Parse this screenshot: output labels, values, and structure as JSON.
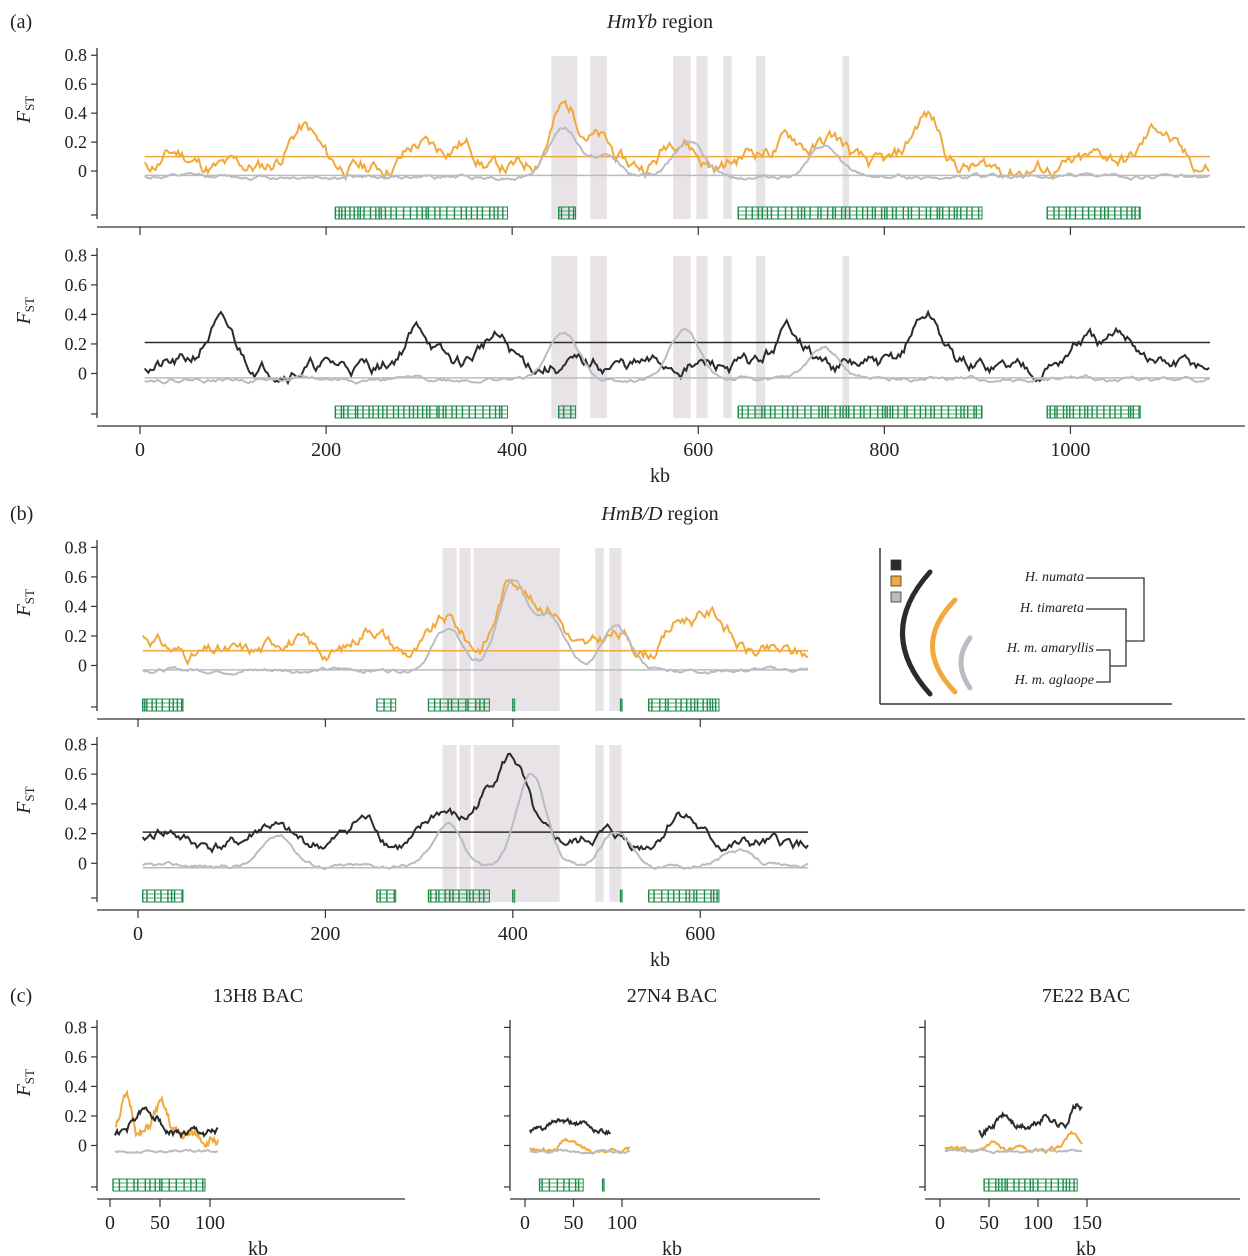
{
  "panels": {
    "a": {
      "letter": "(a)",
      "title_italic": "HmYb",
      "title_rest": " region"
    },
    "b": {
      "letter": "(b)",
      "title_italic": "HmB/D",
      "title_rest": " region"
    },
    "c": {
      "letter": "(c)"
    }
  },
  "ylabel_main": "F",
  "ylabel_sub": "ST",
  "xlabel": "kb",
  "colors": {
    "black": "#2b2b2b",
    "orange": "#f2a93b",
    "grey": "#b9bcc2",
    "gene": "#1d8a48",
    "shade": "#e8e3e6",
    "axis": "#333333"
  },
  "legend": {
    "taxa": [
      "H. numata",
      "H. timareta",
      "H. m. amaryllis",
      "H. m. aglaope"
    ],
    "swatch_colors": [
      "#2b2b2b",
      "#f2a93b",
      "#b9bcc2"
    ]
  },
  "chart_data": [
    {
      "id": "a_top",
      "type": "line",
      "xlim": [
        0,
        1160
      ],
      "ylim": [
        -0.2,
        0.85
      ],
      "yticks": [
        0,
        0.2,
        0.4,
        0.6,
        0.8
      ],
      "ytick_labels": [
        "0",
        "0.2",
        "0.4",
        "0.6",
        "0.8"
      ],
      "xticks": [
        0,
        200,
        400,
        600,
        800,
        1000
      ],
      "xtick_labels": [],
      "shaded_kb": [
        [
          442,
          470
        ],
        [
          484,
          502
        ],
        [
          573,
          592
        ],
        [
          598,
          610
        ],
        [
          627,
          636
        ],
        [
          662,
          672
        ],
        [
          755,
          762
        ]
      ],
      "genes_kb": [
        [
          210,
          395
        ],
        [
          450,
          468
        ],
        [
          643,
          905
        ],
        [
          975,
          1075
        ]
      ],
      "series": [
        {
          "name": "",
          "color": "orange",
          "x_range": [
            5,
            1150
          ],
          "baseline": 0.02,
          "peaks": [
            [
              40,
              0.12
            ],
            [
              175,
              0.3
            ],
            [
              300,
              0.18
            ],
            [
              345,
              0.2
            ],
            [
              455,
              0.42
            ],
            [
              490,
              0.22
            ],
            [
              580,
              0.26
            ],
            [
              660,
              0.14
            ],
            [
              700,
              0.22
            ],
            [
              745,
              0.22
            ],
            [
              845,
              0.38
            ],
            [
              1040,
              0.1
            ],
            [
              1095,
              0.3
            ]
          ],
          "noise": 0.08,
          "hline": 0.1,
          "seed": 11
        },
        {
          "name": "",
          "color": "grey",
          "x_range": [
            5,
            1150
          ],
          "baseline": -0.04,
          "peaks": [
            [
              455,
              0.3
            ],
            [
              500,
              0.1
            ],
            [
              590,
              0.22
            ],
            [
              735,
              0.16
            ]
          ],
          "noise": 0.02,
          "hline": -0.03,
          "seed": 12
        }
      ]
    },
    {
      "id": "a_bottom",
      "type": "line",
      "xlim": [
        0,
        1160
      ],
      "ylim": [
        -0.2,
        0.85
      ],
      "yticks": [
        0,
        0.2,
        0.4,
        0.6,
        0.8
      ],
      "ytick_labels": [
        "0",
        "0.2",
        "0.4",
        "0.6",
        "0.8"
      ],
      "xticks": [
        0,
        200,
        400,
        600,
        800,
        1000
      ],
      "xtick_labels": [
        "0",
        "200",
        "400",
        "600",
        "800",
        "1000"
      ],
      "shaded_kb": [
        [
          442,
          470
        ],
        [
          484,
          502
        ],
        [
          573,
          592
        ],
        [
          598,
          610
        ],
        [
          627,
          636
        ],
        [
          662,
          672
        ],
        [
          755,
          762
        ]
      ],
      "genes_kb": [
        [
          210,
          395
        ],
        [
          450,
          468
        ],
        [
          643,
          905
        ],
        [
          975,
          1075
        ]
      ],
      "series": [
        {
          "name": "",
          "color": "black",
          "x_range": [
            5,
            1150
          ],
          "baseline": 0.05,
          "peaks": [
            [
              85,
              0.32
            ],
            [
              300,
              0.3
            ],
            [
              380,
              0.24
            ],
            [
              700,
              0.3
            ],
            [
              845,
              0.4
            ],
            [
              1015,
              0.22
            ],
            [
              1060,
              0.24
            ]
          ],
          "noise": 0.07,
          "hline": 0.21,
          "seed": 21
        },
        {
          "name": "",
          "color": "grey",
          "x_range": [
            5,
            1150
          ],
          "baseline": -0.04,
          "peaks": [
            [
              455,
              0.28
            ],
            [
              585,
              0.3
            ],
            [
              735,
              0.18
            ]
          ],
          "noise": 0.02,
          "hline": -0.03,
          "seed": 22
        }
      ]
    },
    {
      "id": "b_top",
      "type": "line",
      "xlim": [
        0,
        1185
      ],
      "ylim": [
        -0.2,
        0.85
      ],
      "yticks": [
        0,
        0.2,
        0.4,
        0.6,
        0.8
      ],
      "ytick_labels": [
        "0",
        "0.2",
        "0.4",
        "0.6",
        "0.8"
      ],
      "xticks": [
        0,
        200,
        400,
        600
      ],
      "xtick_labels": [],
      "shaded_kb": [
        [
          325,
          340
        ],
        [
          343,
          355
        ],
        [
          358,
          450
        ],
        [
          488,
          497
        ],
        [
          503,
          516
        ]
      ],
      "genes_kb": [
        [
          5,
          48
        ],
        [
          255,
          275
        ],
        [
          310,
          375
        ],
        [
          400,
          402
        ],
        [
          515,
          516
        ],
        [
          545,
          620
        ]
      ],
      "series": [
        {
          "name": "",
          "color": "orange",
          "x_range": [
            5,
            715
          ],
          "baseline": 0.08,
          "peaks": [
            [
              10,
              0.2
            ],
            [
              160,
              0.2
            ],
            [
              250,
              0.28
            ],
            [
              330,
              0.3
            ],
            [
              400,
              0.6
            ],
            [
              440,
              0.4
            ],
            [
              510,
              0.2
            ],
            [
              580,
              0.3
            ],
            [
              615,
              0.34
            ]
          ],
          "noise": 0.07,
          "hline": 0.1,
          "seed": 31
        },
        {
          "name": "",
          "color": "grey",
          "x_range": [
            5,
            715
          ],
          "baseline": -0.03,
          "peaks": [
            [
              330,
              0.25
            ],
            [
              400,
              0.55
            ],
            [
              440,
              0.35
            ],
            [
              510,
              0.25
            ]
          ],
          "noise": 0.02,
          "hline": -0.03,
          "seed": 32
        }
      ]
    },
    {
      "id": "b_bottom",
      "type": "line",
      "xlim": [
        0,
        1185
      ],
      "ylim": [
        -0.2,
        0.85
      ],
      "yticks": [
        0,
        0.2,
        0.4,
        0.6,
        0.8
      ],
      "ytick_labels": [
        "0",
        "0.2",
        "0.4",
        "0.6",
        "0.8"
      ],
      "xticks": [
        0,
        200,
        400,
        600
      ],
      "xtick_labels": [
        "0",
        "200",
        "400",
        "600"
      ],
      "shaded_kb": [
        [
          325,
          340
        ],
        [
          343,
          355
        ],
        [
          358,
          450
        ],
        [
          488,
          497
        ],
        [
          503,
          516
        ]
      ],
      "genes_kb": [
        [
          5,
          48
        ],
        [
          255,
          275
        ],
        [
          310,
          375
        ],
        [
          400,
          402
        ],
        [
          515,
          516
        ],
        [
          545,
          620
        ]
      ],
      "series": [
        {
          "name": "",
          "color": "black",
          "x_range": [
            5,
            715
          ],
          "baseline": 0.12,
          "peaks": [
            [
              30,
              0.22
            ],
            [
              140,
              0.26
            ],
            [
              240,
              0.3
            ],
            [
              325,
              0.34
            ],
            [
              370,
              0.38
            ],
            [
              400,
              0.68
            ],
            [
              500,
              0.2
            ],
            [
              580,
              0.36
            ]
          ],
          "noise": 0.06,
          "hline": 0.21,
          "seed": 41
        },
        {
          "name": "",
          "color": "grey",
          "x_range": [
            5,
            715
          ],
          "baseline": -0.02,
          "peaks": [
            [
              150,
              0.2
            ],
            [
              330,
              0.26
            ],
            [
              420,
              0.6
            ],
            [
              510,
              0.22
            ],
            [
              640,
              0.08
            ]
          ],
          "noise": 0.02,
          "hline": -0.03,
          "seed": 42
        }
      ]
    },
    {
      "id": "c_13H8",
      "type": "line",
      "title": "13H8 BAC",
      "xlim": [
        -5,
        310
      ],
      "ylim": [
        -0.2,
        0.85
      ],
      "yticks": [
        0,
        0.2,
        0.4,
        0.6,
        0.8
      ],
      "ytick_labels": [
        "0",
        "0.2",
        "0.4",
        "0.6",
        "0.8"
      ],
      "xticks": [
        0,
        50,
        100
      ],
      "xtick_labels": [
        "0",
        "50",
        "100"
      ],
      "shaded_kb": [],
      "genes_kb": [
        [
          3,
          95
        ]
      ],
      "series": [
        {
          "name": "",
          "color": "orange",
          "x_range": [
            5,
            108
          ],
          "baseline": 0.05,
          "peaks": [
            [
              15,
              0.3
            ],
            [
              50,
              0.25
            ],
            [
              100,
              0.05
            ]
          ],
          "noise": 0.06,
          "hline": null,
          "seed": 51
        },
        {
          "name": "",
          "color": "black",
          "x_range": [
            5,
            108
          ],
          "baseline": 0.08,
          "peaks": [
            [
              30,
              0.2
            ],
            [
              45,
              0.2
            ]
          ],
          "noise": 0.04,
          "hline": null,
          "seed": 52
        },
        {
          "name": "",
          "color": "grey",
          "x_range": [
            5,
            108
          ],
          "baseline": -0.04,
          "peaks": [],
          "noise": 0.01,
          "hline": null,
          "seed": 53
        }
      ]
    },
    {
      "id": "c_27N4",
      "type": "line",
      "title": "27N4 BAC",
      "xlim": [
        -5,
        310
      ],
      "ylim": [
        -0.2,
        0.85
      ],
      "yticks": [
        0,
        0.2,
        0.4,
        0.6,
        0.8
      ],
      "ytick_labels": [],
      "xticks": [
        0,
        50,
        100
      ],
      "xtick_labels": [
        "0",
        "50",
        "100"
      ],
      "shaded_kb": [],
      "genes_kb": [
        [
          15,
          60
        ],
        [
          80,
          81
        ]
      ],
      "series": [
        {
          "name": "",
          "color": "black",
          "x_range": [
            5,
            88
          ],
          "baseline": 0.1,
          "peaks": [
            [
              35,
              0.16
            ],
            [
              55,
              0.15
            ]
          ],
          "noise": 0.03,
          "hline": null,
          "seed": 61
        },
        {
          "name": "",
          "color": "orange",
          "x_range": [
            5,
            108
          ],
          "baseline": -0.03,
          "peaks": [
            [
              45,
              0.04
            ]
          ],
          "noise": 0.02,
          "hline": null,
          "seed": 62
        },
        {
          "name": "",
          "color": "grey",
          "x_range": [
            5,
            108
          ],
          "baseline": -0.04,
          "peaks": [],
          "noise": 0.01,
          "hline": null,
          "seed": 63
        }
      ]
    },
    {
      "id": "c_7E22",
      "type": "line",
      "title": "7E22 BAC",
      "xlim": [
        -5,
        310
      ],
      "ylim": [
        -0.2,
        0.85
      ],
      "yticks": [
        0,
        0.2,
        0.4,
        0.6,
        0.8
      ],
      "ytick_labels": [],
      "xticks": [
        0,
        50,
        100,
        150
      ],
      "xtick_labels": [
        "0",
        "50",
        "100",
        "150"
      ],
      "shaded_kb": [],
      "genes_kb": [
        [
          45,
          140
        ]
      ],
      "series": [
        {
          "name": "",
          "color": "black",
          "x_range": [
            40,
            145
          ],
          "baseline": 0.12,
          "peaks": [
            [
              65,
              0.2
            ],
            [
              110,
              0.2
            ],
            [
              140,
              0.27
            ]
          ],
          "noise": 0.04,
          "hline": null,
          "seed": 71
        },
        {
          "name": "",
          "color": "orange",
          "x_range": [
            5,
            145
          ],
          "baseline": -0.03,
          "peaks": [
            [
              55,
              0.02
            ],
            [
              135,
              0.08
            ]
          ],
          "noise": 0.02,
          "hline": null,
          "seed": 72
        },
        {
          "name": "",
          "color": "grey",
          "x_range": [
            5,
            145
          ],
          "baseline": -0.04,
          "peaks": [],
          "noise": 0.01,
          "hline": null,
          "seed": 73
        }
      ]
    }
  ]
}
